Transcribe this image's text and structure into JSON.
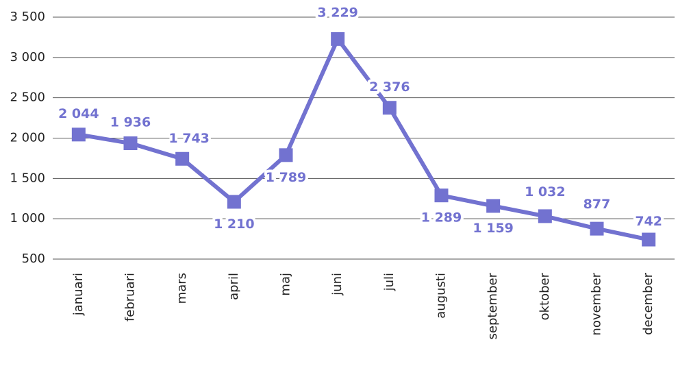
{
  "chart_data": {
    "type": "line",
    "categories": [
      "januari",
      "februari",
      "mars",
      "april",
      "maj",
      "juni",
      "juli",
      "augusti",
      "september",
      "oktober",
      "november",
      "december"
    ],
    "series": [
      {
        "color": "#7272d0",
        "values": [
          2044,
          1936,
          1743,
          1210,
          1789,
          3229,
          2376,
          1289,
          1159,
          1032,
          877,
          742
        ],
        "value_labels": [
          "2 044",
          "1 936",
          "1 743",
          "1 210",
          "1 789",
          "3 229",
          "2 376",
          "1 289",
          "1 159",
          "1 032",
          "877",
          "742"
        ]
      }
    ],
    "ylim": [
      500,
      3500
    ],
    "yticks": [
      {
        "value": 500,
        "label": "500"
      },
      {
        "value": 1000,
        "label": "1 000"
      },
      {
        "value": 1500,
        "label": "1 500"
      },
      {
        "value": 2000,
        "label": "2 000"
      },
      {
        "value": 2500,
        "label": "2 500"
      },
      {
        "value": 3000,
        "label": "3 000"
      },
      {
        "value": 3500,
        "label": "3 500"
      }
    ],
    "grid": true
  }
}
